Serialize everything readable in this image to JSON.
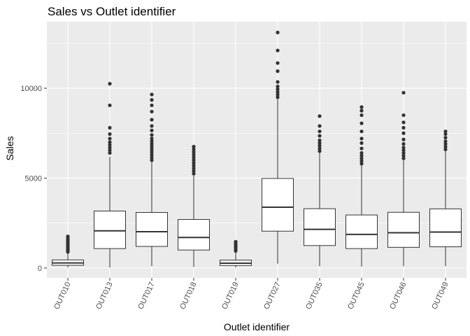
{
  "chart_data": {
    "type": "box",
    "title": "Sales vs Outlet identifier",
    "xlabel": "Outlet identifier",
    "ylabel": "Sales",
    "ylim": [
      -550,
      13700
    ],
    "yticks": [
      0,
      5000,
      10000
    ],
    "grid": true,
    "legend": "none",
    "colors": {
      "panel": "#ebebeb",
      "grid": "#ffffff",
      "box_fill": "#ffffff",
      "box_stroke": "#333333",
      "outlier": "#333333",
      "tick_mark": "#333333",
      "tick_text": "#4d4d4d"
    },
    "categories": [
      "OUT010",
      "OUT013",
      "OUT017",
      "OUT018",
      "OUT019",
      "OUT027",
      "OUT035",
      "OUT045",
      "OUT046",
      "OUT049"
    ],
    "boxes": [
      {
        "min": 30,
        "q1": 150,
        "median": 280,
        "q3": 450,
        "max": 830,
        "outliers": [
          900,
          980,
          1060,
          1140,
          1220,
          1300,
          1380,
          1470,
          1560,
          1650,
          1760
        ]
      },
      {
        "min": 30,
        "q1": 1080,
        "median": 2070,
        "q3": 3170,
        "max": 6180,
        "outliers": [
          6400,
          6550,
          6700,
          6850,
          7000,
          7200,
          7450,
          7800,
          9050,
          10250
        ]
      },
      {
        "min": 100,
        "q1": 1200,
        "median": 2020,
        "q3": 3090,
        "max": 5950,
        "outliers": [
          6000,
          6150,
          6300,
          6450,
          6600,
          6750,
          6900,
          7050,
          7200,
          7400,
          7650,
          7900,
          8250,
          8700,
          9050,
          9350,
          9650
        ]
      },
      {
        "min": 60,
        "q1": 1000,
        "median": 1700,
        "q3": 2700,
        "max": 5200,
        "outliers": [
          5250,
          5400,
          5550,
          5700,
          5850,
          6000,
          6150,
          6300,
          6450,
          6600,
          6750
        ]
      },
      {
        "min": 30,
        "q1": 140,
        "median": 270,
        "q3": 440,
        "max": 880,
        "outliers": [
          950,
          1050,
          1150,
          1250,
          1350,
          1460
        ]
      },
      {
        "min": 240,
        "q1": 2050,
        "median": 3380,
        "q3": 4980,
        "max": 9400,
        "outliers": [
          9500,
          9650,
          9800,
          9950,
          10100,
          10350,
          10950,
          11400,
          12100,
          13100
        ]
      },
      {
        "min": 100,
        "q1": 1250,
        "median": 2150,
        "q3": 3300,
        "max": 6400,
        "outliers": [
          6500,
          6650,
          6800,
          6950,
          7100,
          7350,
          7600,
          7900,
          8450
        ]
      },
      {
        "min": 80,
        "q1": 1080,
        "median": 1870,
        "q3": 2950,
        "max": 5700,
        "outliers": [
          5800,
          5950,
          6100,
          6250,
          6400,
          6650,
          6950,
          7200,
          7600,
          8050,
          8500,
          8750,
          8950
        ]
      },
      {
        "min": 100,
        "q1": 1150,
        "median": 1960,
        "q3": 3100,
        "max": 6050,
        "outliers": [
          6100,
          6250,
          6400,
          6550,
          6700,
          6900,
          7150,
          7500,
          7800,
          8100,
          8500,
          9750
        ]
      },
      {
        "min": 100,
        "q1": 1180,
        "median": 2000,
        "q3": 3290,
        "max": 6500,
        "outliers": [
          6600,
          6750,
          6900,
          7050,
          7250,
          7450,
          7600
        ]
      }
    ]
  }
}
